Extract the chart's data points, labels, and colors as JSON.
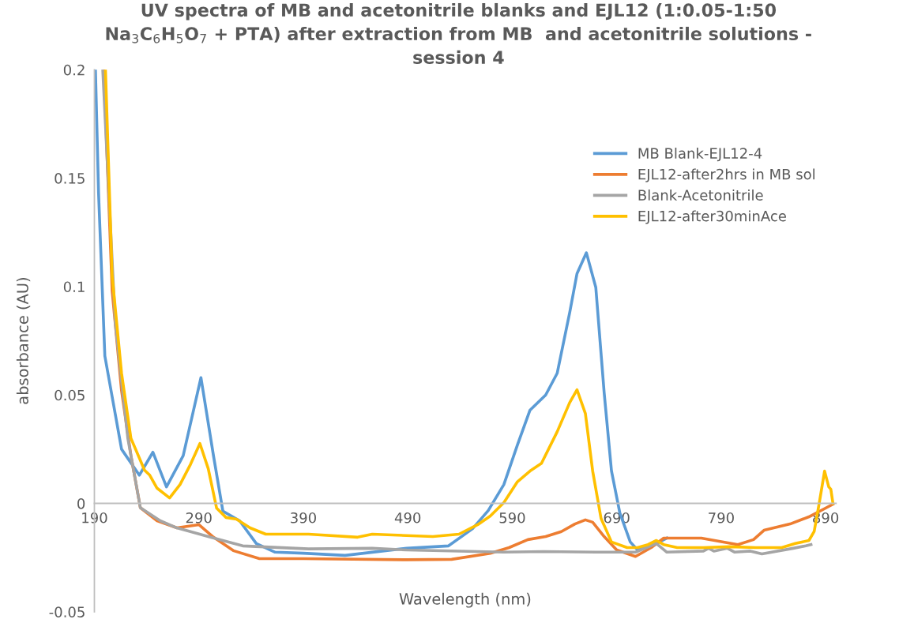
{
  "chart_data": {
    "type": "line",
    "title": "UV spectra of MB and acetonitrile blanks and EJL12 (1:0.05-1:50\nNa$_{3}$C$_{6}$H$_{5}$O$_{7}$ + PTA) after extraction from MB  and acetonitrile solutions -\nsession 4",
    "xlabel": "Wavelength (nm)",
    "ylabel": "absorbance (AU)",
    "xlim": [
      190,
      900
    ],
    "xticks": [
      190,
      290,
      390,
      490,
      590,
      690,
      790,
      890
    ],
    "ylim": [
      -0.05,
      0.2
    ],
    "yticks": [
      -0.05,
      0,
      0.05,
      0.1,
      0.15,
      0.2
    ],
    "grid": false,
    "legend": "top right",
    "marker": "none",
    "line_style": "solid",
    "series": [
      {
        "name": "MB Blank-EJL12-4",
        "color": "#5b9bd5",
        "x": [
          191,
          194,
          200,
          216,
          233,
          246,
          259,
          275,
          292,
          304,
          313,
          329,
          345,
          363,
          390,
          430,
          489,
          529,
          552,
          567,
          582,
          595,
          607,
          622,
          633,
          645,
          652,
          661,
          670,
          678,
          685,
          693,
          703,
          710,
          728,
          738
        ],
        "values": [
          0.2,
          0.143,
          0.068,
          0.025,
          0.013,
          0.0236,
          0.0076,
          0.022,
          0.058,
          0.022,
          -0.0036,
          -0.008,
          -0.0185,
          -0.0225,
          -0.023,
          -0.024,
          -0.0207,
          -0.0196,
          -0.0117,
          -0.0033,
          0.0087,
          0.027,
          0.043,
          0.05,
          0.06,
          0.088,
          0.106,
          0.1156,
          0.0996,
          0.051,
          0.015,
          -0.0044,
          -0.0178,
          -0.0215,
          -0.0185,
          -0.016
        ]
      },
      {
        "name": "EJL12-after2hrs in MB sol",
        "color": "#ed7d31",
        "x": [
          199,
          207,
          216,
          225,
          234,
          250,
          269,
          290,
          304,
          323,
          348,
          390,
          489,
          532,
          569,
          587,
          605,
          622,
          637,
          650,
          660,
          667,
          678,
          690,
          708,
          723,
          735,
          771,
          806,
          821,
          831,
          856,
          874,
          897
        ],
        "values": [
          0.2,
          0.098,
          0.052,
          0.022,
          -0.002,
          -0.008,
          -0.0113,
          -0.0098,
          -0.0156,
          -0.0218,
          -0.0255,
          -0.0255,
          -0.026,
          -0.0258,
          -0.023,
          -0.0204,
          -0.0167,
          -0.0153,
          -0.013,
          -0.0095,
          -0.0076,
          -0.0087,
          -0.0153,
          -0.0215,
          -0.0245,
          -0.0204,
          -0.016,
          -0.016,
          -0.019,
          -0.0167,
          -0.0124,
          -0.0095,
          -0.0062,
          -0.0004
        ]
      },
      {
        "name": "Blank-Acetonitrile",
        "color": "#a5a5a5",
        "x": [
          198,
          210,
          222,
          234,
          253,
          269,
          301,
          332,
          395,
          456,
          489,
          582,
          620,
          670,
          708,
          728,
          738,
          773,
          778,
          783,
          796,
          803,
          818,
          829,
          859,
          871,
          876
        ],
        "values": [
          0.2,
          0.083,
          0.03,
          -0.002,
          -0.008,
          -0.0113,
          -0.0156,
          -0.0196,
          -0.021,
          -0.0207,
          -0.0215,
          -0.0225,
          -0.0222,
          -0.0225,
          -0.0225,
          -0.0185,
          -0.0225,
          -0.022,
          -0.0207,
          -0.022,
          -0.0207,
          -0.0225,
          -0.022,
          -0.0233,
          -0.0207,
          -0.0196,
          -0.019
        ]
      },
      {
        "name": "EJL12-after30minAce",
        "color": "#ffc000",
        "x": [
          200.6,
          207,
          216,
          225,
          238,
          243,
          250,
          262,
          272,
          282,
          291,
          299,
          307,
          316,
          326,
          339,
          354,
          395,
          442,
          456,
          514,
          539,
          557,
          569,
          582,
          595,
          607,
          618,
          633,
          645,
          652,
          660,
          667,
          675,
          685,
          700,
          710,
          720,
          728,
          735,
          748,
          773,
          798,
          823,
          848,
          861,
          874,
          879,
          884,
          889,
          893,
          895,
          897
        ],
        "values": [
          0.2,
          0.105,
          0.06,
          0.03,
          0.0153,
          0.013,
          0.007,
          0.0025,
          0.0087,
          0.018,
          0.0276,
          0.016,
          -0.0022,
          -0.0065,
          -0.0073,
          -0.0113,
          -0.0142,
          -0.0142,
          -0.0156,
          -0.0142,
          -0.0153,
          -0.0142,
          -0.0098,
          -0.0058,
          0.0004,
          0.01,
          0.0149,
          0.0185,
          0.033,
          0.0465,
          0.0524,
          0.0415,
          0.0149,
          -0.0069,
          -0.0178,
          -0.0204,
          -0.0204,
          -0.019,
          -0.0171,
          -0.019,
          -0.0204,
          -0.0204,
          -0.02,
          -0.0204,
          -0.0204,
          -0.0185,
          -0.0171,
          -0.013,
          0.0004,
          0.0149,
          0.0076,
          0.0065,
          0
        ]
      }
    ]
  }
}
